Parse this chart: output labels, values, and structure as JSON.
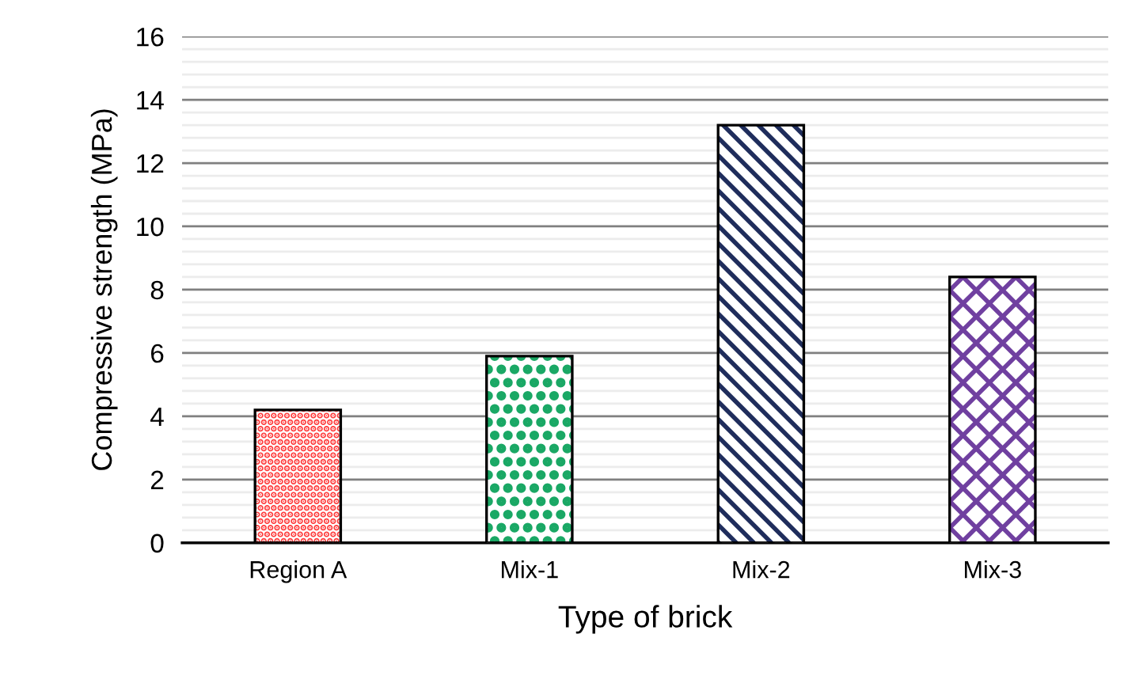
{
  "chart_data": {
    "type": "bar",
    "xlabel": "Type of brick",
    "ylabel": "Compressive strength (MPa)",
    "categories": [
      "Region A",
      "Mix-1",
      "Mix-2",
      "Mix-3"
    ],
    "values": [
      4.2,
      5.9,
      13.2,
      8.4
    ],
    "colors": [
      "#ff3b3b",
      "#1aa865",
      "#1f2d5c",
      "#7040a0"
    ],
    "ylim": [
      0,
      16
    ],
    "yticks": [
      0,
      {
        "value": 0.4,
        "label": null
      },
      {
        "value": 0.8,
        "label": null
      },
      {
        "value": 1.2,
        "label": null
      },
      {
        "value": 1.6,
        "label": null
      },
      2,
      {
        "value": 2.4,
        "label": null
      },
      {
        "value": 2.8,
        "label": null
      },
      {
        "value": 3.2,
        "label": null
      },
      {
        "value": 3.6,
        "label": null
      },
      4,
      {
        "value": 4.4,
        "label": null
      },
      {
        "value": 4.8,
        "label": null
      },
      {
        "value": 5.2,
        "label": null
      },
      {
        "value": 5.6,
        "label": null
      },
      6,
      {
        "value": 6.4,
        "label": null
      },
      {
        "value": 6.8,
        "label": null
      },
      {
        "value": 7.2,
        "label": null
      },
      {
        "value": 7.6,
        "label": null
      },
      8,
      {
        "value": 8.4,
        "label": null
      },
      {
        "value": 8.8,
        "label": null
      },
      {
        "value": 9.2,
        "label": null
      },
      {
        "value": 9.6,
        "label": null
      },
      10,
      {
        "value": 10.4,
        "label": null
      },
      {
        "value": 10.8,
        "label": null
      },
      {
        "value": 11.2,
        "label": null
      },
      {
        "value": 11.6,
        "label": null
      },
      12,
      {
        "value": 12.4,
        "label": null
      },
      {
        "value": 12.8,
        "label": null
      },
      {
        "value": 13.2,
        "label": null
      },
      {
        "value": 13.6,
        "label": null
      },
      14,
      {
        "value": 14.4,
        "label": null
      },
      {
        "value": 14.8,
        "label": null
      },
      {
        "value": 15.2,
        "label": null
      },
      {
        "value": 15.6,
        "label": null
      },
      16
    ],
    "grid": "y"
  }
}
